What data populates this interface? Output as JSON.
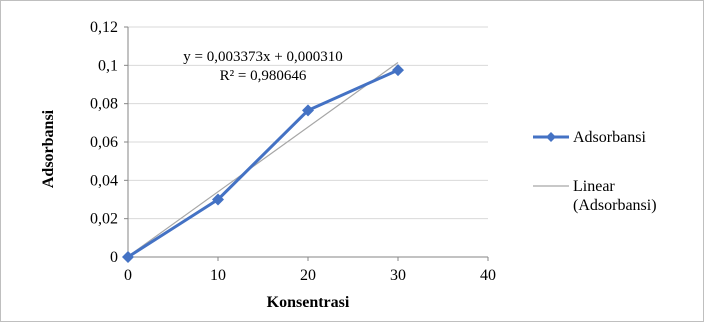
{
  "chart_data": {
    "type": "scatter",
    "xlabel": "Konsentrasi",
    "ylabel": "Adsorbansi",
    "xlim": [
      0,
      40
    ],
    "ylim": [
      0,
      0.12
    ],
    "x_ticks": [
      0,
      10,
      20,
      30,
      40
    ],
    "y_ticks": [
      0,
      0.02,
      0.04,
      0.06,
      0.08,
      0.1,
      0.12
    ],
    "x_tick_labels": [
      "0",
      "10",
      "20",
      "30",
      "40"
    ],
    "y_tick_labels": [
      "0",
      "0,02",
      "0,04",
      "0,06",
      "0,08",
      "0,1",
      "0,12"
    ],
    "grid": "horizontal",
    "legend_position": "right",
    "series": [
      {
        "name": "Adsorbansi",
        "x": [
          0,
          10,
          20,
          30
        ],
        "y": [
          0,
          0.03,
          0.0765,
          0.0975
        ],
        "color": "#4472c4",
        "marker": "diamond"
      }
    ],
    "trendline": {
      "name": "Linear (Adsorbansi)",
      "legend_lines": [
        "Linear",
        "(Adsorbansi)"
      ],
      "slope": 0.003373,
      "intercept": 0.00031,
      "x_range": [
        0,
        30
      ],
      "color": "#a6a6a6",
      "equation": "y = 0,003373x + 0,000310",
      "r_squared": "R² = 0,980646"
    }
  }
}
